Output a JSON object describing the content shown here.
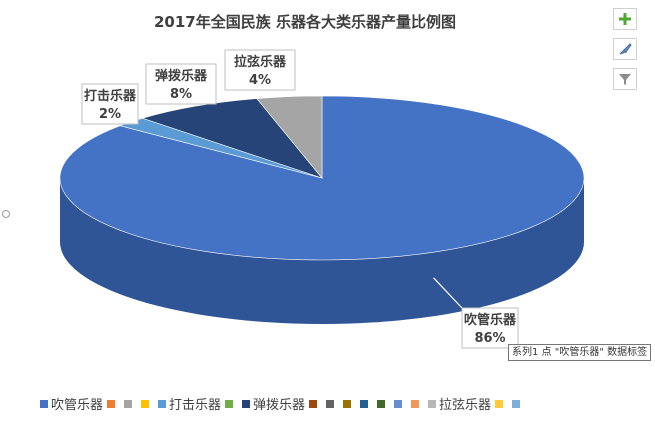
{
  "chart_data": {
    "type": "pie",
    "title": "2017年全国民族 乐器各大类乐器产量比例图",
    "slices": [
      {
        "label": "吹管乐器",
        "value": 86,
        "display": "86%",
        "color": "#4472c4",
        "side_color": "#2f5597"
      },
      {
        "label": "打击乐器",
        "value": 2,
        "display": "2%",
        "color": "#5b9bd5",
        "side_color": "#3f79ad"
      },
      {
        "label": "弹拨乐器",
        "value": 8,
        "display": "8%",
        "color": "#264478",
        "side_color": "#1b3259"
      },
      {
        "label": "拉弦乐器",
        "value": 4,
        "display": "4%",
        "color": "#a5a5a5",
        "side_color": "#7f7f7f"
      }
    ],
    "legend_position": "bottom",
    "legend": [
      {
        "label": "吹管乐器",
        "color": "#4472c4"
      },
      {
        "label": "",
        "color": "#ed7d31"
      },
      {
        "label": "",
        "color": "#a5a5a5"
      },
      {
        "label": "",
        "color": "#ffc000"
      },
      {
        "label": "打击乐器",
        "color": "#5b9bd5"
      },
      {
        "label": "",
        "color": "#70ad47"
      },
      {
        "label": "弹拨乐器",
        "color": "#264478"
      },
      {
        "label": "",
        "color": "#9e480e"
      },
      {
        "label": "",
        "color": "#636363"
      },
      {
        "label": "",
        "color": "#997300"
      },
      {
        "label": "",
        "color": "#255e91"
      },
      {
        "label": "",
        "color": "#43682b"
      },
      {
        "label": "",
        "color": "#698ed0"
      },
      {
        "label": "",
        "color": "#f1975a"
      },
      {
        "label": "拉弦乐器",
        "color": "#b7b7b7"
      },
      {
        "label": "",
        "color": "#ffcd33"
      },
      {
        "label": "",
        "color": "#7cafdd"
      }
    ]
  },
  "toolbar": {
    "add_icon": "plus-icon",
    "style_icon": "brush-icon",
    "filter_icon": "filter-icon",
    "add_color": "#4ea72e"
  },
  "tooltip": {
    "text": "系列1 点 \"吹管乐器\" 数据标签"
  }
}
